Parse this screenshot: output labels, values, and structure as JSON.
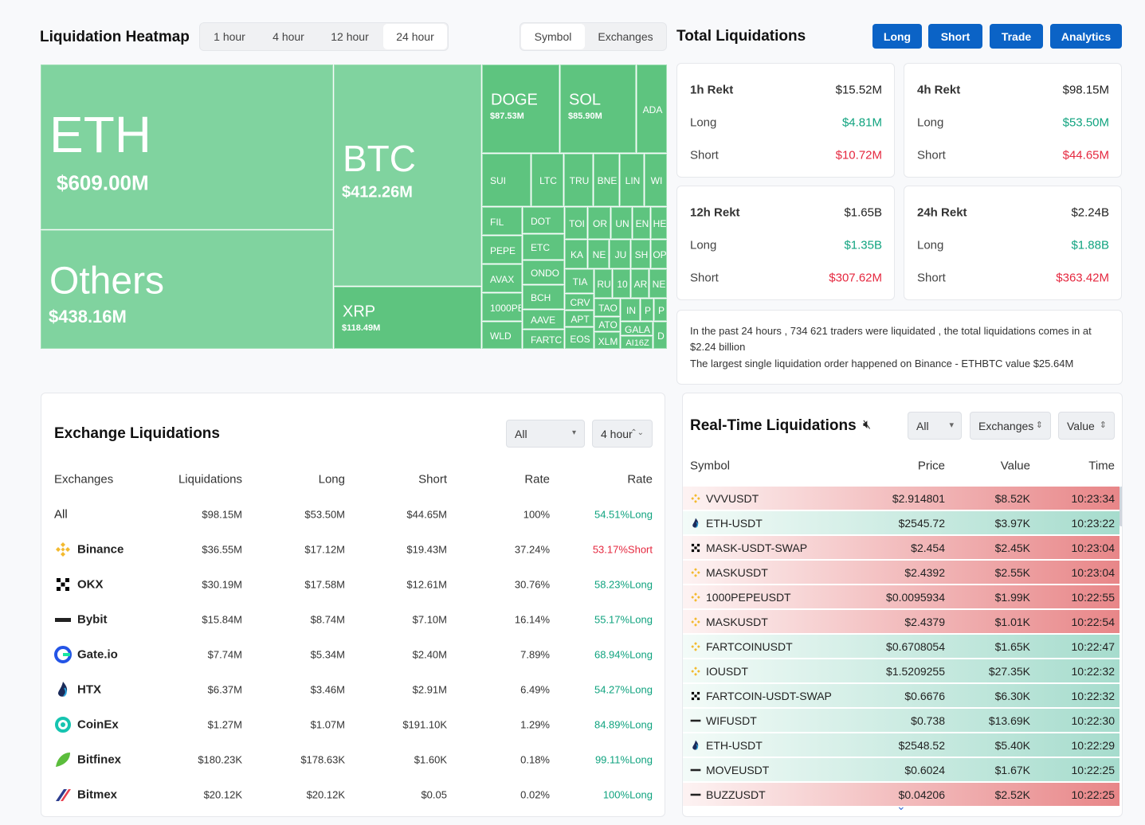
{
  "heatmap": {
    "title": "Liquidation Heatmap",
    "time_tabs": [
      "1 hour",
      "4 hour",
      "12 hour",
      "24 hour"
    ],
    "view_tabs": [
      "Symbol",
      "Exchanges"
    ],
    "cells": [
      {
        "label": "ETH",
        "value": "$609.00M"
      },
      {
        "label": "Others",
        "value": "$438.16M"
      },
      {
        "label": "BTC",
        "value": "$412.26M"
      },
      {
        "label": "XRP",
        "value": "$118.49M"
      },
      {
        "label": "DOGE",
        "value": "$87.53M"
      },
      {
        "label": "SOL",
        "value": "$85.90M"
      },
      {
        "label": "ADA"
      },
      {
        "label": "SUI"
      },
      {
        "label": "LTC"
      },
      {
        "label": "TRU"
      },
      {
        "label": "BNE"
      },
      {
        "label": "LIN"
      },
      {
        "label": "WI"
      },
      {
        "label": "FIL"
      },
      {
        "label": "PEPE"
      },
      {
        "label": "AVAX"
      },
      {
        "label": "1000PE"
      },
      {
        "label": "WLD"
      },
      {
        "label": "DOT"
      },
      {
        "label": "ETC"
      },
      {
        "label": "ONDO"
      },
      {
        "label": "BCH"
      },
      {
        "label": "AAVE"
      },
      {
        "label": "FARTC"
      },
      {
        "label": "TOI"
      },
      {
        "label": "OR"
      },
      {
        "label": "UN"
      },
      {
        "label": "EN"
      },
      {
        "label": "HE"
      },
      {
        "label": "KA"
      },
      {
        "label": "NE"
      },
      {
        "label": "JU"
      },
      {
        "label": "SH"
      },
      {
        "label": "OP"
      },
      {
        "label": "TIA"
      },
      {
        "label": "RU"
      },
      {
        "label": "10"
      },
      {
        "label": "AR"
      },
      {
        "label": "NE"
      },
      {
        "label": "CRV"
      },
      {
        "label": "APT"
      },
      {
        "label": "EOS"
      },
      {
        "label": "TAO"
      },
      {
        "label": "ATO"
      },
      {
        "label": "XLM"
      },
      {
        "label": "IN"
      },
      {
        "label": "P"
      },
      {
        "label": "P"
      },
      {
        "label": "GALA"
      },
      {
        "label": "AI16Z"
      },
      {
        "label": "D"
      }
    ]
  },
  "total": {
    "title": "Total Liquidations",
    "buttons": [
      "Long",
      "Short",
      "Trade",
      "Analytics"
    ],
    "cards": [
      {
        "title": "1h Rekt",
        "total": "$15.52M",
        "rows": [
          {
            "label": "Long",
            "value": "$4.81M"
          },
          {
            "label": "Short",
            "value": "$10.72M"
          }
        ]
      },
      {
        "title": "4h Rekt",
        "total": "$98.15M",
        "rows": [
          {
            "label": "Long",
            "value": "$53.50M"
          },
          {
            "label": "Short",
            "value": "$44.65M"
          }
        ]
      },
      {
        "title": "12h Rekt",
        "total": "$1.65B",
        "rows": [
          {
            "label": "Long",
            "value": "$1.35B"
          },
          {
            "label": "Short",
            "value": "$307.62M"
          }
        ]
      },
      {
        "title": "24h Rekt",
        "total": "$2.24B",
        "rows": [
          {
            "label": "Long",
            "value": "$1.88B"
          },
          {
            "label": "Short",
            "value": "$363.42M"
          }
        ]
      }
    ],
    "summary": [
      "In the past 24 hours , 734 621 traders were liquidated , the total liquidations comes in at $2.24 billion",
      "The largest single liquidation order happened on Binance - ETHBTC value $25.64M"
    ]
  },
  "exchange": {
    "title": "Exchange Liquidations",
    "filters": [
      "All",
      "4 hour"
    ],
    "columns": [
      "Exchanges",
      "Liquidations",
      "Long",
      "Short",
      "Rate",
      "Rate"
    ],
    "rows": [
      [
        "All",
        "$98.15M",
        "$53.50M",
        "$44.65M",
        "100%",
        "54.51%Long"
      ],
      [
        "Binance",
        "$36.55M",
        "$17.12M",
        "$19.43M",
        "37.24%",
        "53.17%Short"
      ],
      [
        "OKX",
        "$30.19M",
        "$17.58M",
        "$12.61M",
        "30.76%",
        "58.23%Long"
      ],
      [
        "Bybit",
        "$15.84M",
        "$8.74M",
        "$7.10M",
        "16.14%",
        "55.17%Long"
      ],
      [
        "Gate.io",
        "$7.74M",
        "$5.34M",
        "$2.40M",
        "7.89%",
        "68.94%Long"
      ],
      [
        "HTX",
        "$6.37M",
        "$3.46M",
        "$2.91M",
        "6.49%",
        "54.27%Long"
      ],
      [
        "CoinEx",
        "$1.27M",
        "$1.07M",
        "$191.10K",
        "1.29%",
        "84.89%Long"
      ],
      [
        "Bitfinex",
        "$180.23K",
        "$178.63K",
        "$1.60K",
        "0.18%",
        "99.11%Long"
      ],
      [
        "Bitmex",
        "$20.12K",
        "$20.12K",
        "$0.05",
        "0.02%",
        "100%Long"
      ]
    ]
  },
  "realtime": {
    "title": "Real-Time Liquidations",
    "filters": [
      "All",
      "Exchanges",
      "Value"
    ],
    "columns": [
      "Symbol",
      "Price",
      "Value",
      "Time"
    ],
    "rows": [
      [
        "VVVUSDT",
        "$2.914801",
        "$8.52K",
        "10:23:34"
      ],
      [
        "ETH-USDT",
        "$2545.72",
        "$3.97K",
        "10:23:22"
      ],
      [
        "MASK-USDT-SWAP",
        "$2.454",
        "$2.45K",
        "10:23:04"
      ],
      [
        "MASKUSDT",
        "$2.4392",
        "$2.55K",
        "10:23:04"
      ],
      [
        "1000PEPEUSDT",
        "$0.0095934",
        "$1.99K",
        "10:22:55"
      ],
      [
        "MASKUSDT",
        "$2.4379",
        "$1.01K",
        "10:22:54"
      ],
      [
        "FARTCOINUSDT",
        "$0.6708054",
        "$1.65K",
        "10:22:47"
      ],
      [
        "IOUSDT",
        "$1.5209255",
        "$27.35K",
        "10:22:32"
      ],
      [
        "FARTCOIN-USDT-SWAP",
        "$0.6676",
        "$6.30K",
        "10:22:32"
      ],
      [
        "WIFUSDT",
        "$0.738",
        "$13.69K",
        "10:22:30"
      ],
      [
        "ETH-USDT",
        "$2548.52",
        "$5.40K",
        "10:22:29"
      ],
      [
        "MOVEUSDT",
        "$0.6024",
        "$1.67K",
        "10:22:25"
      ],
      [
        "BUZZUSDT",
        "$0.04206",
        "$2.52K",
        "10:22:25"
      ]
    ]
  }
}
